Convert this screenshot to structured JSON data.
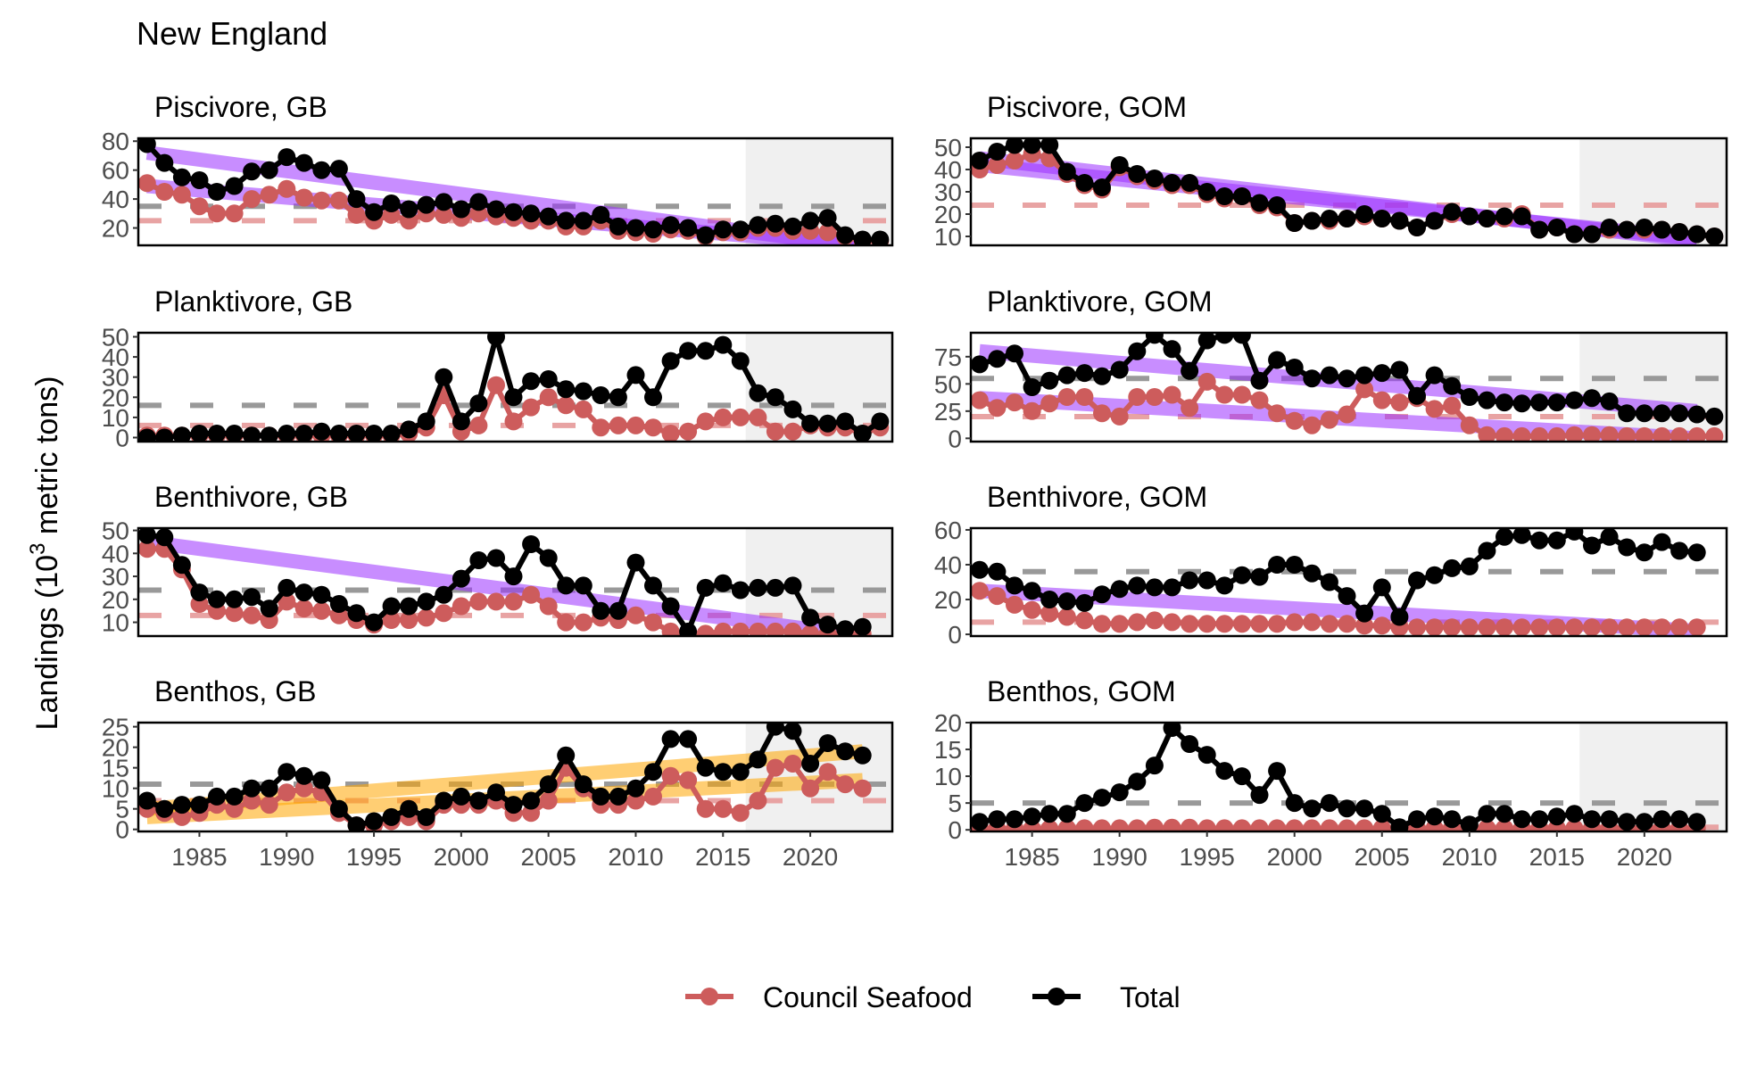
{
  "figure": {
    "title": "New England",
    "ylabel_main": "Landings (10",
    "ylabel_sup": "3",
    "ylabel_tail": " metric tons)",
    "x_ticks": [
      1985,
      1990,
      1995,
      2000,
      2005,
      2010,
      2015,
      2020
    ],
    "legend": [
      {
        "label": "Council Seafood",
        "color": "#CD5C5C"
      },
      {
        "label": "Total",
        "color": "#000000"
      }
    ]
  },
  "colors": {
    "council": "#CD5C5C",
    "total": "#000000",
    "trend_down": "#9B30FF",
    "trend_up": "#FFA500",
    "mean_line": "#999999",
    "mean_line_council": "#E8A3A3",
    "shade": "#F0F0F0"
  },
  "chart_data": [
    {
      "type": "line",
      "panel": "Piscivore, GB",
      "xlim": [
        1981.5,
        2024.7
      ],
      "ylim": [
        8,
        82
      ],
      "yticks": [
        20,
        40,
        60,
        80
      ],
      "shade_from": 2016.3,
      "mean_total": 35,
      "mean_council": 25,
      "trends": [
        {
          "on": "total",
          "color": "down",
          "x": [
            1982,
            2023
          ],
          "y": [
            72,
            7
          ]
        },
        {
          "on": "council",
          "color": "down",
          "x": [
            1982,
            2023
          ],
          "y": [
            49,
            8
          ]
        }
      ],
      "series": [
        {
          "name": "Total",
          "x0": 1982,
          "values": [
            78,
            65,
            55,
            53,
            45,
            49,
            59,
            60,
            69,
            65,
            60,
            61,
            40,
            31,
            37,
            33,
            36,
            38,
            33,
            38,
            33,
            31,
            30,
            28,
            25,
            25,
            29,
            21,
            20,
            19,
            22,
            20,
            15,
            19,
            19,
            22,
            23,
            21,
            25,
            27,
            15,
            12,
            12
          ]
        },
        {
          "name": "Council Seafood",
          "x0": 1982,
          "values": [
            51,
            45,
            43,
            35,
            30,
            30,
            40,
            43,
            47,
            41,
            39,
            39,
            29,
            25,
            29,
            25,
            30,
            29,
            27,
            30,
            28,
            27,
            25,
            25,
            21,
            21,
            25,
            18,
            17,
            16,
            19,
            18,
            14,
            17,
            17,
            20,
            20,
            18,
            18,
            17,
            14,
            11,
            11
          ]
        }
      ]
    },
    {
      "type": "line",
      "panel": "Piscivore, GOM",
      "xlim": [
        1981.5,
        2024.7
      ],
      "ylim": [
        6,
        54
      ],
      "yticks": [
        10,
        20,
        30,
        40,
        50
      ],
      "shade_from": 2016.3,
      "mean_total": 24,
      "mean_council": 24,
      "trends": [
        {
          "on": "total",
          "color": "down",
          "x": [
            1982,
            2023
          ],
          "y": [
            45,
            8
          ]
        },
        {
          "on": "council",
          "color": "down",
          "x": [
            1982,
            2023
          ],
          "y": [
            42,
            9
          ]
        }
      ],
      "series": [
        {
          "name": "Total",
          "x0": 1982,
          "values": [
            44,
            48,
            51,
            51,
            51,
            39,
            34,
            32,
            42,
            38,
            36,
            34,
            34,
            30,
            28,
            28,
            25,
            24,
            16,
            17,
            18,
            18,
            20,
            18,
            17,
            14,
            17,
            21,
            19,
            18,
            19,
            19,
            13,
            14,
            11,
            11,
            14,
            13,
            14,
            13,
            12,
            11,
            10
          ]
        },
        {
          "name": "Council Seafood",
          "x0": 1982,
          "values": [
            40,
            42,
            44,
            47,
            45,
            38,
            33,
            31,
            41,
            37,
            35,
            33,
            33,
            29,
            27,
            28,
            24,
            23,
            16,
            17,
            17,
            18,
            19,
            18,
            17,
            14,
            17,
            20,
            19,
            18,
            18,
            20,
            13,
            14,
            11,
            11,
            13,
            13,
            13,
            13,
            12,
            11,
            10
          ]
        }
      ]
    },
    {
      "type": "line",
      "panel": "Planktivore, GB",
      "xlim": [
        1981.5,
        2024.7
      ],
      "ylim": [
        -2,
        52
      ],
      "yticks": [
        0,
        10,
        20,
        30,
        40,
        50
      ],
      "shade_from": 2016.3,
      "mean_total": 16,
      "mean_council": 6,
      "trends": [],
      "series": [
        {
          "name": "Total",
          "x0": 1982,
          "values": [
            0,
            0,
            1,
            2,
            2,
            2,
            1,
            1,
            2,
            2,
            3,
            2,
            2,
            2,
            2,
            4,
            8,
            30,
            8,
            17,
            50,
            20,
            28,
            29,
            24,
            23,
            21,
            20,
            31,
            20,
            38,
            43,
            43,
            46,
            38,
            22,
            20,
            14,
            7,
            7,
            8,
            2,
            8
          ]
        },
        {
          "name": "Council Seafood",
          "x0": 1982,
          "values": [
            1,
            1,
            1,
            1,
            1,
            1,
            1,
            1,
            1,
            1,
            1,
            1,
            1,
            1,
            1,
            2,
            5,
            21,
            3,
            6,
            26,
            8,
            15,
            20,
            16,
            14,
            5,
            6,
            6,
            5,
            2,
            3,
            8,
            10,
            10,
            10,
            3,
            3,
            6,
            5,
            5,
            2,
            5
          ]
        }
      ]
    },
    {
      "type": "line",
      "panel": "Planktivore, GOM",
      "xlim": [
        1981.5,
        2024.7
      ],
      "ylim": [
        -3,
        97
      ],
      "yticks": [
        0,
        25,
        50,
        75
      ],
      "shade_from": 2016.3,
      "mean_total": 55,
      "mean_council": 20,
      "trends": [
        {
          "on": "total",
          "color": "down",
          "x": [
            1982,
            2023
          ],
          "y": [
            80,
            25
          ]
        },
        {
          "on": "council",
          "color": "down",
          "x": [
            1982,
            2023
          ],
          "y": [
            37,
            0
          ]
        }
      ],
      "series": [
        {
          "name": "Total",
          "x0": 1982,
          "values": [
            68,
            73,
            78,
            47,
            53,
            58,
            60,
            57,
            63,
            80,
            95,
            82,
            62,
            90,
            95,
            95,
            53,
            72,
            65,
            55,
            58,
            55,
            58,
            60,
            63,
            39,
            58,
            48,
            38,
            35,
            33,
            32,
            33,
            33,
            35,
            37,
            34,
            23,
            23,
            23,
            23,
            22,
            20
          ]
        },
        {
          "name": "Council Seafood",
          "x0": 1982,
          "values": [
            35,
            28,
            33,
            25,
            32,
            38,
            38,
            23,
            20,
            38,
            38,
            40,
            28,
            52,
            40,
            40,
            35,
            23,
            16,
            12,
            17,
            22,
            45,
            35,
            33,
            37,
            27,
            30,
            12,
            3,
            2,
            2,
            2,
            2,
            3,
            3,
            3,
            2,
            2,
            2,
            2,
            2,
            2
          ]
        }
      ]
    },
    {
      "type": "line",
      "panel": "Benthivore, GB",
      "xlim": [
        1981.5,
        2024.7
      ],
      "ylim": [
        4,
        51
      ],
      "yticks": [
        10,
        20,
        30,
        40,
        50
      ],
      "shade_from": 2016.3,
      "mean_total": 24,
      "mean_council": 13,
      "trends": [
        {
          "on": "total",
          "color": "down",
          "x": [
            1982,
            2023
          ],
          "y": [
            45,
            4
          ]
        }
      ],
      "series": [
        {
          "name": "Total",
          "x0": 1982,
          "values": [
            48,
            47,
            35,
            23,
            20,
            20,
            21,
            16,
            25,
            23,
            22,
            18,
            14,
            10,
            17,
            17,
            19,
            22,
            29,
            37,
            38,
            30,
            44,
            38,
            26,
            26,
            15,
            15,
            36,
            26,
            17,
            6,
            25,
            27,
            24,
            25,
            25,
            26,
            12,
            9,
            7,
            8
          ]
        },
        {
          "name": "Council Seafood",
          "x0": 1982,
          "values": [
            42,
            42,
            33,
            18,
            15,
            14,
            13,
            11,
            19,
            16,
            15,
            13,
            11,
            9,
            11,
            11,
            12,
            14,
            17,
            19,
            19,
            19,
            22,
            17,
            10,
            10,
            12,
            11,
            13,
            10,
            6,
            5,
            5,
            6,
            6,
            6,
            6,
            6,
            5,
            5,
            5,
            5
          ]
        }
      ]
    },
    {
      "type": "line",
      "panel": "Benthivore, GOM",
      "xlim": [
        1981.5,
        2024.7
      ],
      "ylim": [
        -1,
        61
      ],
      "yticks": [
        0,
        20,
        40,
        60
      ],
      "shade_from": null,
      "mean_total": 36,
      "mean_council": 7,
      "trends": [
        {
          "on": "council",
          "color": "down",
          "x": [
            1982,
            2023
          ],
          "y": [
            25,
            2
          ]
        }
      ],
      "series": [
        {
          "name": "Total",
          "x0": 1982,
          "values": [
            37,
            36,
            28,
            25,
            20,
            19,
            18,
            23,
            26,
            28,
            27,
            27,
            31,
            31,
            28,
            34,
            33,
            40,
            40,
            35,
            30,
            22,
            12,
            27,
            10,
            31,
            34,
            38,
            39,
            48,
            56,
            57,
            54,
            54,
            59,
            51,
            56,
            50,
            47,
            53,
            48,
            47
          ]
        },
        {
          "name": "Council Seafood",
          "x0": 1982,
          "values": [
            25,
            22,
            17,
            14,
            12,
            10,
            8,
            6,
            6,
            7,
            8,
            7,
            6,
            6,
            6,
            6,
            6,
            6,
            7,
            7,
            6,
            6,
            5,
            5,
            4,
            4,
            4,
            4,
            4,
            4,
            4,
            4,
            4,
            4,
            4,
            4,
            4,
            4,
            4,
            4,
            4,
            4
          ]
        }
      ]
    },
    {
      "type": "line",
      "panel": "Benthos, GB",
      "xlim": [
        1981.5,
        2024.7
      ],
      "ylim": [
        -0.5,
        26
      ],
      "yticks": [
        0,
        5,
        10,
        15,
        20,
        25
      ],
      "shade_from": 2016.3,
      "mean_total": 11,
      "mean_council": 7,
      "trends": [
        {
          "on": "total",
          "color": "up",
          "x": [
            1982,
            2023
          ],
          "y": [
            5,
            19
          ]
        },
        {
          "on": "council",
          "color": "up",
          "x": [
            1982,
            2023
          ],
          "y": [
            3,
            12
          ]
        }
      ],
      "series": [
        {
          "name": "Total",
          "x0": 1982,
          "values": [
            7,
            5,
            6,
            6,
            8,
            8,
            10,
            10,
            14,
            13,
            12,
            5,
            1,
            2,
            3,
            5,
            3,
            7,
            8,
            7,
            9,
            6,
            7,
            11,
            18,
            11,
            8,
            8,
            10,
            14,
            22,
            22,
            15,
            14,
            14,
            17,
            25,
            24,
            16,
            21,
            19,
            18
          ]
        },
        {
          "name": "Council Seafood",
          "x0": 1982,
          "values": [
            5,
            4,
            3,
            4,
            6,
            5,
            7,
            6,
            9,
            10,
            9,
            4,
            1,
            1,
            2,
            3,
            2,
            6,
            6,
            6,
            7,
            4,
            4,
            7,
            15,
            10,
            6,
            6,
            7,
            8,
            13,
            12,
            5,
            5,
            4,
            7,
            15,
            16,
            10,
            14,
            11,
            10
          ]
        }
      ]
    },
    {
      "type": "line",
      "panel": "Benthos, GOM",
      "xlim": [
        1981.5,
        2024.7
      ],
      "ylim": [
        -0.3,
        20
      ],
      "yticks": [
        0,
        5,
        10,
        15,
        20
      ],
      "shade_from": 2016.3,
      "mean_total": 5,
      "mean_council": 0.5,
      "trends": [],
      "series": [
        {
          "name": "Total",
          "x0": 1982,
          "values": [
            1.5,
            2,
            2,
            2.5,
            3,
            3,
            5,
            6,
            7,
            9,
            12,
            19,
            16,
            14,
            11,
            10,
            6.5,
            11,
            5,
            4,
            5,
            4,
            4,
            3,
            0.5,
            2,
            2.5,
            2,
            1,
            3,
            3,
            2,
            2,
            2.5,
            3,
            2,
            2,
            1.5,
            1.5,
            2,
            2,
            1.5
          ]
        },
        {
          "name": "Council Seafood",
          "x0": 1982,
          "values": [
            0.2,
            0.2,
            0.2,
            0.2,
            0.2,
            0.3,
            0.3,
            0.3,
            0.3,
            0.3,
            0.4,
            0.4,
            0.4,
            0.3,
            0.3,
            0.3,
            0.3,
            0.3,
            0.3,
            0.3,
            0.3,
            0.3,
            0.3,
            0.3,
            0.3,
            0.3,
            0.3,
            0.3,
            0.3,
            0.3,
            0.3,
            0.3,
            0.3,
            0.3,
            0.3,
            0.3,
            0.3,
            0.3,
            0.3,
            0.3,
            0.3,
            0.3
          ]
        }
      ]
    }
  ]
}
